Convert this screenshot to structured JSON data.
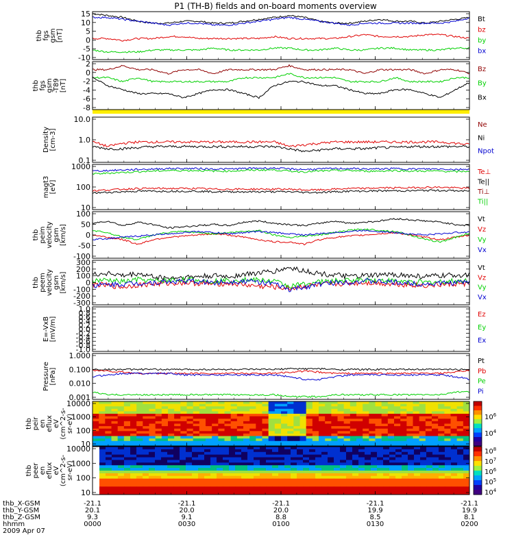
{
  "title": "P1 (TH-B) fields and on-board moments overview",
  "colors": {
    "black": "#000000",
    "red": "#e00000",
    "green": "#00d000",
    "blue": "#0000d0",
    "darkred": "#900000",
    "yellow": "#ffee00"
  },
  "chart_data": [
    {
      "type": "line",
      "ylabel": [
        "thb",
        "fgs",
        "gsm",
        "[nT]"
      ],
      "ylim": [
        -10,
        15
      ],
      "ticks": [
        "15",
        "10",
        "5",
        "0",
        "-5",
        "-10"
      ],
      "legend": [
        {
          "name": "Bt",
          "color": "black"
        },
        {
          "name": "bz",
          "color": "red"
        },
        {
          "name": "by",
          "color": "green"
        },
        {
          "name": "bx",
          "color": "blue"
        }
      ],
      "series": [
        {
          "name": "Bt",
          "color": "black",
          "values": [
            14,
            13,
            12,
            10,
            9,
            9,
            10,
            10,
            9,
            9,
            10,
            11,
            12,
            13,
            12,
            10,
            9,
            9,
            10,
            11,
            10,
            10,
            9,
            10,
            11,
            12
          ]
        },
        {
          "name": "bz",
          "color": "red",
          "values": [
            1,
            1,
            0,
            1,
            1,
            2,
            2,
            1,
            1,
            1,
            1,
            1,
            2,
            1,
            1,
            1,
            1,
            2,
            3,
            2,
            2,
            2,
            3,
            3,
            2,
            1
          ]
        },
        {
          "name": "by",
          "color": "green",
          "values": [
            -5,
            -6,
            -6,
            -6,
            -5,
            -5,
            -5,
            -5,
            -4,
            -5,
            -5,
            -5,
            -4,
            -4,
            -5,
            -5,
            -4,
            -5,
            -5,
            -4,
            -4,
            -5,
            -5,
            -5,
            -4,
            -4
          ]
        },
        {
          "name": "bx",
          "color": "blue",
          "values": [
            12,
            12,
            11,
            10,
            9,
            8,
            9,
            9,
            8,
            8,
            9,
            10,
            11,
            12,
            11,
            10,
            9,
            8,
            9,
            9,
            9,
            9,
            9,
            9,
            10,
            12
          ]
        }
      ]
    },
    {
      "type": "line",
      "ylabel": [
        "thb",
        "fgs",
        "gsm",
        "-T89",
        "[nT]"
      ],
      "ylim": [
        -9,
        3
      ],
      "ticks": [
        "2",
        "0",
        "-2",
        "-4",
        "-6",
        "-8"
      ],
      "legend": [
        {
          "name": "Bz",
          "color": "darkred"
        },
        {
          "name": "By",
          "color": "green"
        },
        {
          "name": "Bx",
          "color": "black"
        }
      ],
      "series": [
        {
          "name": "Bz",
          "color": "darkred",
          "values": [
            1,
            1,
            2,
            1,
            1,
            0,
            1,
            1,
            0,
            1,
            1,
            1,
            1,
            2,
            1,
            1,
            1,
            1,
            0,
            1,
            1,
            1,
            0,
            1,
            1,
            0
          ]
        },
        {
          "name": "By",
          "color": "green",
          "values": [
            -1,
            -1,
            -2,
            -1,
            -2,
            -2,
            -2,
            -2,
            -2,
            -2,
            -1,
            -1,
            -1,
            0,
            -1,
            -1,
            -1,
            -2,
            -2,
            -2,
            -1,
            -2,
            -2,
            -2,
            -1,
            -1
          ]
        },
        {
          "name": "Bx",
          "color": "black",
          "values": [
            -1,
            -3,
            -4,
            -5,
            -5,
            -5,
            -6,
            -5,
            -4,
            -4,
            -5,
            -6,
            -3,
            -2,
            -2,
            -3,
            -3,
            -4,
            -5,
            -5,
            -4,
            -4,
            -5,
            -6,
            -4,
            -2
          ]
        }
      ]
    },
    {
      "type": "line",
      "ylabel": [
        "Density",
        "[cm-3]"
      ],
      "ylim": [
        0.1,
        10
      ],
      "log": true,
      "ticks": [
        "10.0",
        "1.0",
        "0.1"
      ],
      "legend": [
        {
          "name": "Ne",
          "color": "darkred"
        },
        {
          "name": "Ni",
          "color": "black"
        },
        {
          "name": "Npot",
          "color": "blue"
        }
      ],
      "series": [
        {
          "name": "Ne",
          "color": "red",
          "values": [
            0.8,
            0.5,
            0.7,
            0.8,
            0.8,
            0.8,
            0.8,
            0.8,
            0.8,
            0.8,
            0.8,
            0.8,
            0.8,
            0.5,
            0.6,
            0.7,
            0.8,
            0.8,
            0.8,
            0.8,
            0.8,
            0.8,
            0.8,
            0.8,
            0.7,
            0.6
          ]
        },
        {
          "name": "Ni",
          "color": "black",
          "values": [
            0.5,
            0.4,
            0.4,
            0.45,
            0.5,
            0.5,
            0.5,
            0.5,
            0.5,
            0.5,
            0.5,
            0.5,
            0.5,
            0.4,
            0.3,
            0.35,
            0.4,
            0.4,
            0.4,
            0.45,
            0.45,
            0.5,
            0.5,
            0.5,
            0.5,
            0.5
          ]
        }
      ]
    },
    {
      "type": "line",
      "ylabel": [
        "magt3",
        "[eV]"
      ],
      "ylim": [
        3,
        1500
      ],
      "log": true,
      "ticks": [
        "1000",
        "100",
        "10"
      ],
      "legend": [
        {
          "name": "Te⊥",
          "color": "red"
        },
        {
          "name": "Te||",
          "color": "black"
        },
        {
          "name": "Ti⊥",
          "color": "darkred"
        },
        {
          "name": "Ti||",
          "color": "green"
        }
      ],
      "series": [
        {
          "name": "Ti||",
          "color": "green",
          "values": [
            400,
            450,
            500,
            550,
            600,
            650,
            650,
            650,
            600,
            600,
            650,
            700,
            700,
            600,
            550,
            600,
            650,
            650,
            600,
            600,
            650,
            600,
            600,
            600,
            550,
            600
          ]
        },
        {
          "name": "Ti⊥",
          "color": "blue",
          "values": [
            600,
            650,
            700,
            750,
            800,
            850,
            850,
            850,
            800,
            800,
            850,
            900,
            900,
            800,
            750,
            800,
            850,
            850,
            800,
            800,
            850,
            800,
            800,
            800,
            750,
            800
          ]
        },
        {
          "name": "Te⊥",
          "color": "red",
          "values": [
            40,
            45,
            50,
            55,
            55,
            55,
            55,
            55,
            50,
            50,
            50,
            50,
            50,
            50,
            45,
            45,
            50,
            55,
            55,
            60,
            60,
            60,
            65,
            65,
            60,
            55
          ]
        },
        {
          "name": "Te||",
          "color": "black",
          "values": [
            30,
            32,
            35,
            38,
            38,
            38,
            38,
            38,
            35,
            35,
            35,
            35,
            35,
            35,
            32,
            32,
            35,
            38,
            38,
            40,
            40,
            40,
            42,
            42,
            40,
            38
          ]
        }
      ]
    },
    {
      "type": "line",
      "ylabel": [
        "thb",
        "peim",
        "velocity",
        "gsm",
        "[km/s]"
      ],
      "ylim": [
        -100,
        100
      ],
      "ticks": [
        "100",
        "50",
        "0",
        "-50",
        "-100"
      ],
      "legend": [
        {
          "name": "Vt",
          "color": "black"
        },
        {
          "name": "Vz",
          "color": "red"
        },
        {
          "name": "Vy",
          "color": "green"
        },
        {
          "name": "Vx",
          "color": "blue"
        }
      ],
      "series": [
        {
          "name": "Vt",
          "color": "black",
          "values": [
            50,
            60,
            40,
            55,
            45,
            30,
            35,
            40,
            45,
            40,
            55,
            60,
            50,
            45,
            40,
            50,
            60,
            50,
            55,
            60,
            70,
            65,
            60,
            55,
            45,
            40
          ]
        },
        {
          "name": "Vz",
          "color": "red",
          "values": [
            0,
            -10,
            -20,
            -40,
            -20,
            -10,
            -5,
            0,
            5,
            0,
            -10,
            -20,
            -30,
            -30,
            -40,
            -20,
            -10,
            -5,
            0,
            5,
            10,
            0,
            -10,
            -20,
            -10,
            0
          ]
        },
        {
          "name": "Vy",
          "color": "green",
          "values": [
            20,
            10,
            -10,
            -20,
            0,
            10,
            15,
            10,
            5,
            10,
            15,
            20,
            0,
            -10,
            -5,
            0,
            10,
            20,
            25,
            20,
            15,
            0,
            -20,
            -30,
            -10,
            10
          ]
        },
        {
          "name": "Vx",
          "color": "blue",
          "values": [
            -20,
            -15,
            -10,
            -5,
            0,
            5,
            10,
            15,
            10,
            5,
            10,
            15,
            10,
            5,
            0,
            5,
            10,
            15,
            20,
            15,
            10,
            5,
            0,
            5,
            10,
            15
          ]
        }
      ]
    },
    {
      "type": "line",
      "ylabel": [
        "thb",
        "peem",
        "velocity",
        "gsm",
        "[km/s]"
      ],
      "ylim": [
        -300,
        300
      ],
      "ticks": [
        "300",
        "200",
        "100",
        "0",
        "-100",
        "-200",
        "-300"
      ],
      "legend": [
        {
          "name": "Vt",
          "color": "black"
        },
        {
          "name": "Vz",
          "color": "red"
        },
        {
          "name": "Vy",
          "color": "green"
        },
        {
          "name": "Vx",
          "color": "blue"
        }
      ],
      "series": [
        {
          "name": "Vt",
          "color": "black",
          "values": [
            100,
            130,
            90,
            120,
            80,
            60,
            70,
            80,
            90,
            80,
            110,
            130,
            150,
            200,
            160,
            120,
            100,
            80,
            90,
            100,
            110,
            90,
            80,
            90,
            100,
            110
          ]
        },
        {
          "name": "Vz",
          "color": "red",
          "values": [
            -20,
            -40,
            -60,
            -30,
            -20,
            -10,
            0,
            -10,
            -20,
            -10,
            -30,
            -50,
            -60,
            -80,
            -50,
            -30,
            -20,
            -10,
            0,
            -10,
            -20,
            -30,
            -40,
            -30,
            -20,
            -10
          ]
        },
        {
          "name": "Vy",
          "color": "green",
          "values": [
            20,
            30,
            10,
            40,
            20,
            30,
            40,
            30,
            20,
            30,
            40,
            30,
            20,
            -50,
            -20,
            10,
            20,
            30,
            40,
            30,
            20,
            10,
            0,
            10,
            20,
            30
          ]
        },
        {
          "name": "Vx",
          "color": "blue",
          "values": [
            -40,
            -30,
            -20,
            -10,
            0,
            10,
            20,
            10,
            0,
            10,
            20,
            10,
            -20,
            -100,
            -60,
            -20,
            0,
            10,
            20,
            10,
            0,
            -10,
            -20,
            -10,
            0,
            10
          ]
        }
      ]
    },
    {
      "type": "line",
      "ylabel": [
        "E=-VxB",
        "[mV/m]"
      ],
      "ylim": [
        -1.0,
        1.0
      ],
      "ticks": [
        "1.0",
        "0.8",
        "0.6",
        "0.4",
        "0.2",
        "0.0",
        "-0.2",
        "-0.4",
        "-0.6",
        "-0.8",
        "-1.0"
      ],
      "legend": [
        {
          "name": "Ez",
          "color": "red"
        },
        {
          "name": "Ey",
          "color": "green"
        },
        {
          "name": "Ex",
          "color": "blue"
        }
      ],
      "series": []
    },
    {
      "type": "line",
      "ylabel": [
        "Pressure",
        "[nPa]"
      ],
      "ylim": [
        0.001,
        1.0
      ],
      "log": true,
      "ticks": [
        "1.000",
        "0.100",
        "0.010",
        "0.001"
      ],
      "legend": [
        {
          "name": "Pt",
          "color": "black"
        },
        {
          "name": "Pb",
          "color": "red"
        },
        {
          "name": "Pe",
          "color": "green"
        },
        {
          "name": "Pi",
          "color": "blue"
        }
      ],
      "series": [
        {
          "name": "Pt",
          "color": "black",
          "values": [
            0.09,
            0.09,
            0.09,
            0.09,
            0.09,
            0.09,
            0.09,
            0.09,
            0.09,
            0.09,
            0.09,
            0.09,
            0.09,
            0.1,
            0.1,
            0.1,
            0.09,
            0.09,
            0.09,
            0.09,
            0.09,
            0.09,
            0.09,
            0.09,
            0.09,
            0.09
          ]
        },
        {
          "name": "Pb",
          "color": "red",
          "values": [
            0.08,
            0.07,
            0.06,
            0.05,
            0.05,
            0.05,
            0.05,
            0.05,
            0.05,
            0.05,
            0.05,
            0.05,
            0.05,
            0.06,
            0.07,
            0.06,
            0.05,
            0.05,
            0.05,
            0.05,
            0.05,
            0.05,
            0.05,
            0.05,
            0.06,
            0.08
          ]
        },
        {
          "name": "Pe",
          "color": "green",
          "values": [
            0.003,
            0.002,
            0.002,
            0.002,
            0.002,
            0.002,
            0.002,
            0.002,
            0.002,
            0.002,
            0.002,
            0.002,
            0.002,
            0.0015,
            0.0015,
            0.0015,
            0.002,
            0.002,
            0.002,
            0.002,
            0.002,
            0.002,
            0.002,
            0.002,
            0.003,
            0.003
          ]
        },
        {
          "name": "Pi",
          "color": "blue",
          "values": [
            0.03,
            0.04,
            0.05,
            0.05,
            0.05,
            0.05,
            0.04,
            0.04,
            0.04,
            0.04,
            0.04,
            0.04,
            0.04,
            0.03,
            0.02,
            0.02,
            0.03,
            0.04,
            0.04,
            0.04,
            0.04,
            0.04,
            0.04,
            0.04,
            0.03,
            0.02
          ]
        }
      ]
    },
    {
      "type": "heatmap",
      "ylabel": [
        "thb",
        "peir",
        "en",
        "eflux",
        "eV",
        "(cm^2-s-",
        "sr-eV)"
      ],
      "ylim": [
        10,
        15000
      ],
      "log": true,
      "ticks": [
        "10000",
        "1000",
        "100",
        "10"
      ],
      "colorbar_ticks": [
        "10^6",
        "10^4"
      ]
    },
    {
      "type": "heatmap",
      "ylabel": [
        "thb",
        "peer",
        "en",
        "eflux",
        "eV",
        "(cm^2-s-",
        "sr-eV)"
      ],
      "ylim": [
        5,
        20000
      ],
      "log": true,
      "ticks": [
        "10000",
        "1000",
        "100",
        "10"
      ],
      "colorbar_ticks": [
        "10^8",
        "10^7",
        "10^6",
        "10^5",
        "10^4"
      ]
    }
  ],
  "xaxis": {
    "row_labels": [
      "thb_X-GSM",
      "thb_Y-GSM",
      "thb_Z-GSM",
      "hhmm",
      "2009 Apr 07"
    ],
    "ticks": [
      {
        "x": "-21.1",
        "y": "20.1",
        "z": "9.3",
        "t": "0000"
      },
      {
        "x": "-21.1",
        "y": "20.0",
        "z": "9.1",
        "t": "0030"
      },
      {
        "x": "-21.1",
        "y": "20.0",
        "z": "8.8",
        "t": "0100"
      },
      {
        "x": "-21.1",
        "y": "19.9",
        "z": "8.5",
        "t": "0130"
      },
      {
        "x": "-21.1",
        "y": "19.9",
        "z": "8.1",
        "t": "0200"
      }
    ]
  }
}
